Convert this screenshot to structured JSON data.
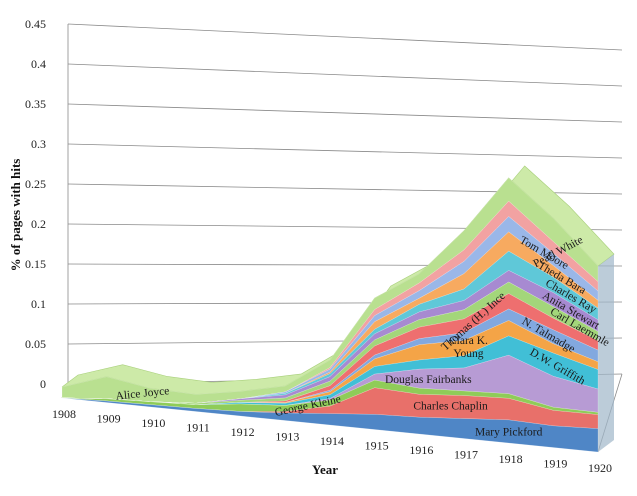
{
  "chart_data": {
    "type": "area",
    "stacked": true,
    "perspective": "3d",
    "xlabel": "Year",
    "ylabel": "% of pages with hits",
    "ylim": [
      0,
      0.45
    ],
    "yticks": [
      "0",
      "0.05",
      "0.1",
      "0.15",
      "0.2",
      "0.25",
      "0.3",
      "0.35",
      "0.4",
      "0.45"
    ],
    "categories": [
      "1908",
      "1909",
      "1910",
      "1911",
      "1912",
      "1913",
      "1914",
      "1915",
      "1916",
      "1917",
      "1918",
      "1919",
      "1920"
    ],
    "series": [
      {
        "name": "Mary Pickford",
        "color": "#4f86c6",
        "values": [
          0,
          0.002,
          0.003,
          0.004,
          0.006,
          0.01,
          0.015,
          0.02,
          0.022,
          0.026,
          0.03,
          0.028,
          0.03
        ]
      },
      {
        "name": "Charles Chaplin",
        "color": "#e8706a",
        "values": [
          0,
          0,
          0,
          0,
          0,
          0.002,
          0.01,
          0.035,
          0.03,
          0.03,
          0.028,
          0.02,
          0.018
        ]
      },
      {
        "name": "George Kleine",
        "color": "#8fcc58",
        "values": [
          0,
          0.003,
          0.004,
          0.005,
          0.01,
          0.008,
          0.008,
          0.01,
          0.008,
          0.006,
          0.006,
          0.004,
          0.003
        ]
      },
      {
        "name": "Douglas Fairbanks",
        "color": "#b79bd4",
        "values": [
          0,
          0,
          0,
          0,
          0,
          0,
          0.002,
          0.008,
          0.025,
          0.03,
          0.05,
          0.04,
          0.03
        ]
      },
      {
        "name": "D.W. Griffith",
        "color": "#41bfd6",
        "values": [
          0,
          0,
          0,
          0,
          0.002,
          0.003,
          0.005,
          0.01,
          0.012,
          0.016,
          0.025,
          0.03,
          0.025
        ]
      },
      {
        "name": "Clara K. Young",
        "color": "#f4a447",
        "values": [
          0,
          0,
          0,
          0,
          0,
          0.001,
          0.004,
          0.01,
          0.02,
          0.02,
          0.02,
          0.012,
          0.01
        ]
      },
      {
        "name": "N. Talmadge",
        "color": "#82a8df",
        "values": [
          0,
          0,
          0,
          0,
          0,
          0,
          0.002,
          0.005,
          0.008,
          0.01,
          0.015,
          0.018,
          0.015
        ]
      },
      {
        "name": "Thomas (H.) Ince",
        "color": "#ee6f6f",
        "values": [
          0,
          0,
          0,
          0,
          0,
          0.002,
          0.006,
          0.012,
          0.015,
          0.018,
          0.02,
          0.015,
          0.012
        ]
      },
      {
        "name": "Carl Laemmle",
        "color": "#a3d67a",
        "values": [
          0,
          0,
          0,
          0.002,
          0.003,
          0.004,
          0.006,
          0.008,
          0.01,
          0.012,
          0.015,
          0.015,
          0.012
        ]
      },
      {
        "name": "Anita Stewart",
        "color": "#a78ad1",
        "values": [
          0,
          0,
          0,
          0,
          0.002,
          0.004,
          0.006,
          0.008,
          0.01,
          0.012,
          0.015,
          0.018,
          0.015
        ]
      },
      {
        "name": "Charles Ray",
        "color": "#5fc8d8",
        "values": [
          0,
          0,
          0,
          0,
          0,
          0.002,
          0.004,
          0.006,
          0.01,
          0.015,
          0.025,
          0.02,
          0.015
        ]
      },
      {
        "name": "Theda Bara",
        "color": "#f7aa60",
        "values": [
          0,
          0,
          0,
          0,
          0,
          0,
          0.002,
          0.01,
          0.008,
          0.02,
          0.025,
          0.015,
          0.01
        ]
      },
      {
        "name": "Tom Moore",
        "color": "#9ab7e8",
        "values": [
          0,
          0,
          0,
          0,
          0,
          0.002,
          0.004,
          0.008,
          0.01,
          0.016,
          0.02,
          0.016,
          0.012
        ]
      },
      {
        "name": "Pearl White",
        "color": "#f2a2a2",
        "values": [
          0,
          0,
          0,
          0,
          0,
          0,
          0.002,
          0.008,
          0.01,
          0.015,
          0.02,
          0.015,
          0.012
        ]
      },
      {
        "name": "Alice Joyce",
        "color": "#b9e090",
        "values": [
          0.015,
          0.03,
          0.018,
          0.012,
          0.01,
          0.008,
          0.01,
          0.015,
          0.012,
          0.025,
          0.03,
          0.03,
          0.02
        ]
      }
    ]
  }
}
